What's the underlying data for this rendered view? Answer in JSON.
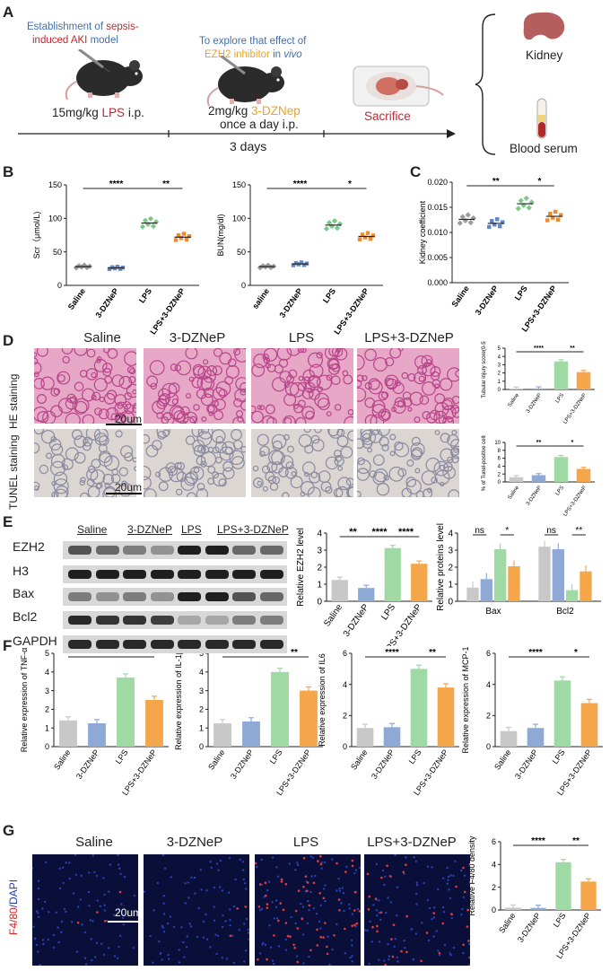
{
  "panelA": {
    "label": "A",
    "step1": {
      "line1a": "Establishment of ",
      "line1b": "sepsis-",
      "line2a": "induced AKI",
      "line2b": " model",
      "dose_a": "15mg/kg ",
      "dose_b": "LPS",
      "dose_c": " i.p."
    },
    "step2": {
      "line1": "To explore that effect of",
      "line2a": "EZH2 inhibitor",
      "line2b": " in ",
      "line2c": "vivo",
      "dose1a": "2mg/kg ",
      "dose1b": "3-DZNep",
      "dose2": "once a day i.p."
    },
    "sacrifice": "Sacrifice",
    "timeline": "3 days",
    "kidney": "Kidney",
    "serum": "Blood serum",
    "colors": {
      "blue": "#3f6fb0",
      "red": "#c0282e",
      "orange": "#e6a32a"
    }
  },
  "panelB": {
    "label": "B"
  },
  "panelC": {
    "label": "C"
  },
  "panelD": {
    "label": "D",
    "headers": [
      "Saline",
      "3-DZNeP",
      "LPS",
      "LPS+3-DZNeP"
    ],
    "row1": "HE staining",
    "row2": "TUNEL staining",
    "scale": "20um"
  },
  "panelE": {
    "label": "E",
    "groups": [
      "Saline",
      "3-DZNeP",
      "LPS",
      "LPS+3-DZNeP"
    ],
    "bands": [
      "EZH2",
      "H3",
      "Bax",
      "Bcl2",
      "GAPDH"
    ]
  },
  "panelF": {
    "label": "F"
  },
  "panelG": {
    "label": "G",
    "headers": [
      "Saline",
      "3-DZNeP",
      "LPS",
      "LPS+3-DZNeP"
    ],
    "ylabel_a": "F4/80",
    "ylabel_b": "/DAPI",
    "scale": "20um"
  },
  "colors": {
    "saline": "#c8c8c8",
    "dznep": "#8fa9d6",
    "lps": "#9fd9a4",
    "combo": "#f5a64a"
  },
  "chart_data": [
    {
      "id": "B1",
      "type": "scatter",
      "ylabel": "Scr（μmol/L)",
      "ylim": [
        0,
        150
      ],
      "yticks": [
        0,
        50,
        100,
        150
      ],
      "categories": [
        "Saline",
        "3-DZNeP",
        "LPS",
        "LPS+3-DZNeP"
      ],
      "means": [
        28,
        26,
        93,
        72
      ],
      "sig": [
        {
          "from": 0,
          "to": 2,
          "label": "****"
        },
        {
          "from": 2,
          "to": 3,
          "label": "**"
        }
      ]
    },
    {
      "id": "B2",
      "type": "scatter",
      "ylabel": "BUN(mg/dl)",
      "ylim": [
        0,
        150
      ],
      "yticks": [
        0,
        50,
        100,
        150
      ],
      "categories": [
        "saline",
        "3-DZNeP",
        "LPS",
        "LPS+3-DZNeP"
      ],
      "means": [
        28,
        32,
        90,
        73
      ],
      "sig": [
        {
          "from": 0,
          "to": 2,
          "label": "****"
        },
        {
          "from": 2,
          "to": 3,
          "label": "*"
        }
      ]
    },
    {
      "id": "C",
      "type": "scatter",
      "ylabel": "Kidney coefficient",
      "ylim": [
        0,
        0.02
      ],
      "yticks": [
        "0.000",
        "0.005",
        "0.010",
        "0.015",
        "0.020"
      ],
      "categories": [
        "Saline",
        "3-DZNeP",
        "LPS",
        "LPS+3-DZNeP"
      ],
      "means": [
        0.0126,
        0.0118,
        0.0157,
        0.0132
      ],
      "sig": [
        {
          "from": 0,
          "to": 2,
          "label": "**"
        },
        {
          "from": 2,
          "to": 3,
          "label": "*"
        }
      ]
    },
    {
      "id": "D1",
      "type": "bar",
      "ylabel": "Tubular injury score(0-5)",
      "ylim": [
        0,
        5
      ],
      "yticks": [
        0,
        1,
        2,
        3,
        4,
        5
      ],
      "categories": [
        "Saline",
        "3-DZNeP",
        "LPS",
        "LPS+3-DZNeP"
      ],
      "values": [
        0.1,
        0.12,
        3.4,
        2.1
      ],
      "sig": [
        {
          "from": 0,
          "to": 2,
          "label": "****"
        },
        {
          "from": 2,
          "to": 3,
          "label": "**"
        }
      ]
    },
    {
      "id": "D2",
      "type": "bar",
      "ylabel": "% of Tunel-positive cells",
      "ylim": [
        0,
        10
      ],
      "yticks": [
        0,
        2,
        4,
        6,
        8,
        10
      ],
      "categories": [
        "Saline",
        "3-DZNeP",
        "LPS",
        "LPS+3-DZNeP"
      ],
      "values": [
        1.2,
        1.7,
        6.3,
        3.3
      ],
      "sig": [
        {
          "from": 0,
          "to": 2,
          "label": "**"
        },
        {
          "from": 2,
          "to": 3,
          "label": "*"
        }
      ]
    },
    {
      "id": "E1",
      "type": "bar",
      "ylabel": "Relative EZH2 level",
      "ylim": [
        0,
        4
      ],
      "yticks": [
        0,
        1,
        2,
        3,
        4
      ],
      "categories": [
        "Saline",
        "3-DZNeP",
        "LPS",
        "LPS+3-DZNeP"
      ],
      "values": [
        1.25,
        0.78,
        3.12,
        2.2
      ],
      "sig": [
        {
          "from": 0,
          "to": 1,
          "label": "**"
        },
        {
          "from": 1,
          "to": 2,
          "label": "****"
        },
        {
          "from": 2,
          "to": 3,
          "label": "****"
        }
      ]
    },
    {
      "id": "E2",
      "type": "bar",
      "ylabel": "Relative proteins level",
      "ylim": [
        0,
        4
      ],
      "yticks": [
        0,
        1,
        2,
        3,
        4
      ],
      "categories": [
        "Bax",
        "Bcl2"
      ],
      "series": [
        {
          "values": [
            0.8,
            3.2
          ]
        },
        {
          "values": [
            1.3,
            3.05
          ]
        },
        {
          "values": [
            3.05,
            0.65
          ]
        },
        {
          "values": [
            2.05,
            1.75
          ]
        }
      ],
      "sig": [
        {
          "group": 0,
          "from": 0,
          "to": 1,
          "label": "ns"
        },
        {
          "group": 0,
          "from": 2,
          "to": 3,
          "label": "*"
        },
        {
          "group": 1,
          "from": 0,
          "to": 1,
          "label": "ns"
        },
        {
          "group": 1,
          "from": 2,
          "to": 3,
          "label": "**"
        }
      ]
    },
    {
      "id": "F1",
      "type": "bar",
      "ylabel": "Relative expression of TNF-α",
      "ylim": [
        0,
        5
      ],
      "yticks": [
        0,
        1,
        2,
        3,
        4,
        5
      ],
      "categories": [
        "Saline",
        "3-DZNeP",
        "LPS",
        "LPS+3-DZNeP"
      ],
      "values": [
        1.4,
        1.25,
        3.7,
        2.5
      ],
      "sig": [
        {
          "from": 0,
          "to": 2,
          "label": "****"
        },
        {
          "from": 2,
          "to": 3,
          "label": "***"
        }
      ]
    },
    {
      "id": "F2",
      "type": "bar",
      "ylabel": "Relative expression of IL-1β",
      "ylim": [
        0,
        5
      ],
      "yticks": [
        0,
        1,
        2,
        3,
        4,
        5
      ],
      "categories": [
        "Saline",
        "3-DZNeP",
        "LPS",
        "LPS+3-DZNeP"
      ],
      "values": [
        1.25,
        1.35,
        4.0,
        3.0
      ],
      "sig": [
        {
          "from": 0,
          "to": 2,
          "label": "****"
        },
        {
          "from": 2,
          "to": 3,
          "label": "**"
        }
      ]
    },
    {
      "id": "F3",
      "type": "bar",
      "ylabel": "Relative expression of IL6",
      "ylim": [
        0,
        6
      ],
      "yticks": [
        0,
        2,
        4,
        6
      ],
      "categories": [
        "Saline",
        "3-DZNeP",
        "LPS",
        "LPS+3-DZNeP"
      ],
      "values": [
        1.2,
        1.25,
        5.0,
        3.8
      ],
      "sig": [
        {
          "from": 0,
          "to": 2,
          "label": "****"
        },
        {
          "from": 2,
          "to": 3,
          "label": "**"
        }
      ]
    },
    {
      "id": "F4",
      "type": "bar",
      "ylabel": "Relative expression of MCP-1",
      "ylim": [
        0,
        6
      ],
      "yticks": [
        0,
        2,
        4,
        6
      ],
      "categories": [
        "Saline",
        "3-DZNeP",
        "LPS",
        "LPS+3-DZNeP"
      ],
      "values": [
        1.0,
        1.2,
        4.25,
        2.8
      ],
      "sig": [
        {
          "from": 0,
          "to": 2,
          "label": "****"
        },
        {
          "from": 2,
          "to": 3,
          "label": "*"
        }
      ]
    },
    {
      "id": "G",
      "type": "bar",
      "ylabel": "Relative F4/80 density",
      "ylim": [
        0,
        6
      ],
      "yticks": [
        0,
        2,
        4,
        6
      ],
      "categories": [
        "Saline",
        "3-DZNeP",
        "LPS",
        "LPS+3-DZNeP"
      ],
      "values": [
        0.2,
        0.18,
        4.2,
        2.5
      ],
      "sig": [
        {
          "from": 0,
          "to": 2,
          "label": "****"
        },
        {
          "from": 2,
          "to": 3,
          "label": "**"
        }
      ]
    }
  ]
}
